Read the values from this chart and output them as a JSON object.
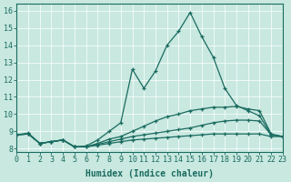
{
  "xlabel": "Humidex (Indice chaleur)",
  "bg_color": "#c8e8e0",
  "line_color": "#1a6b60",
  "grid_color": "#ffffff",
  "xlim": [
    0,
    23
  ],
  "ylim": [
    7.8,
    16.4
  ],
  "xticks": [
    0,
    1,
    2,
    3,
    4,
    5,
    6,
    7,
    8,
    9,
    10,
    11,
    12,
    13,
    14,
    15,
    16,
    17,
    18,
    19,
    20,
    21,
    22,
    23
  ],
  "yticks": [
    8,
    9,
    10,
    11,
    12,
    13,
    14,
    15,
    16
  ],
  "line1_y": [
    8.8,
    8.9,
    8.3,
    8.4,
    8.5,
    8.1,
    8.15,
    8.5,
    9.0,
    9.5,
    12.6,
    11.5,
    12.5,
    14.0,
    14.8,
    15.9,
    14.5,
    13.3,
    11.5,
    10.5,
    10.2,
    9.9,
    8.8,
    8.7
  ],
  "line2_y": [
    8.8,
    8.85,
    8.3,
    8.4,
    8.5,
    8.1,
    8.1,
    8.3,
    8.55,
    8.7,
    9.0,
    9.3,
    9.6,
    9.85,
    10.0,
    10.2,
    10.3,
    10.4,
    10.4,
    10.45,
    10.3,
    10.2,
    8.85,
    8.7
  ],
  "line3_y": [
    8.8,
    8.85,
    8.3,
    8.4,
    8.5,
    8.1,
    8.1,
    8.25,
    8.4,
    8.55,
    8.7,
    8.8,
    8.9,
    9.0,
    9.1,
    9.2,
    9.35,
    9.5,
    9.6,
    9.65,
    9.65,
    9.6,
    8.8,
    8.7
  ],
  "line4_y": [
    8.8,
    8.85,
    8.3,
    8.4,
    8.5,
    8.1,
    8.1,
    8.2,
    8.3,
    8.4,
    8.5,
    8.55,
    8.6,
    8.65,
    8.7,
    8.75,
    8.8,
    8.85,
    8.85,
    8.85,
    8.85,
    8.85,
    8.7,
    8.7
  ],
  "xlabel_fontsize": 7,
  "tick_fontsize": 6,
  "linewidth": 0.9,
  "markersize": 2.5
}
